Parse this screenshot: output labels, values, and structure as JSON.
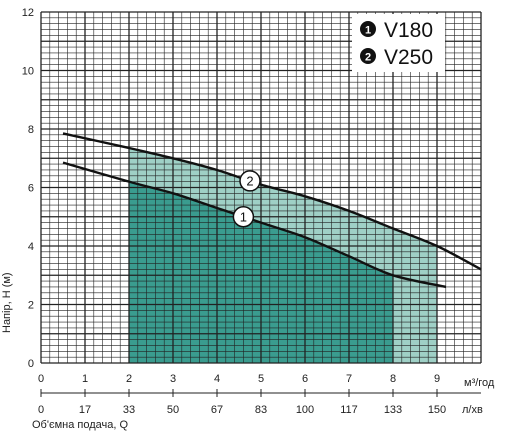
{
  "chart_data": {
    "type": "line",
    "xlabel": "Об'ємна подача, Q",
    "ylabel": "Напір, H (м)",
    "x_unit": "м³/год",
    "x2_unit": "л/хв",
    "xlim": [
      0,
      10
    ],
    "ylim": [
      0,
      12
    ],
    "x_ticks": [
      "0",
      "1",
      "2",
      "3",
      "4",
      "5",
      "6",
      "7",
      "8",
      "9"
    ],
    "x2_ticks": [
      "0",
      "17",
      "33",
      "50",
      "67",
      "83",
      "100",
      "117",
      "133",
      "150"
    ],
    "y_ticks": [
      "0",
      "2",
      "4",
      "6",
      "8",
      "10",
      "12"
    ],
    "grid": true,
    "legend": [
      {
        "marker": "1",
        "label": "V180"
      },
      {
        "marker": "2",
        "label": "V250"
      }
    ],
    "series": [
      {
        "name": "V180",
        "marker": "1",
        "x": [
          0.5,
          2,
          3,
          4,
          5,
          6,
          7,
          8,
          9.2
        ],
        "y": [
          6.85,
          6.2,
          5.8,
          5.3,
          4.8,
          4.3,
          3.65,
          3.0,
          2.6
        ]
      },
      {
        "name": "V250",
        "marker": "2",
        "x": [
          0.5,
          2,
          3,
          4,
          5,
          6,
          7,
          8,
          9,
          10
        ],
        "y": [
          7.85,
          7.35,
          7.0,
          6.6,
          6.1,
          5.7,
          5.2,
          4.6,
          4.0,
          3.2
        ]
      }
    ],
    "operating_ranges": [
      {
        "series": "V180",
        "x_range": [
          2,
          8
        ]
      },
      {
        "series": "V250",
        "x_range": [
          2,
          9
        ]
      }
    ],
    "colors": {
      "range_light": "#9fd0c6",
      "range_dark": "#3a9c8f",
      "curve": "#111111",
      "grid": "#222222"
    }
  }
}
